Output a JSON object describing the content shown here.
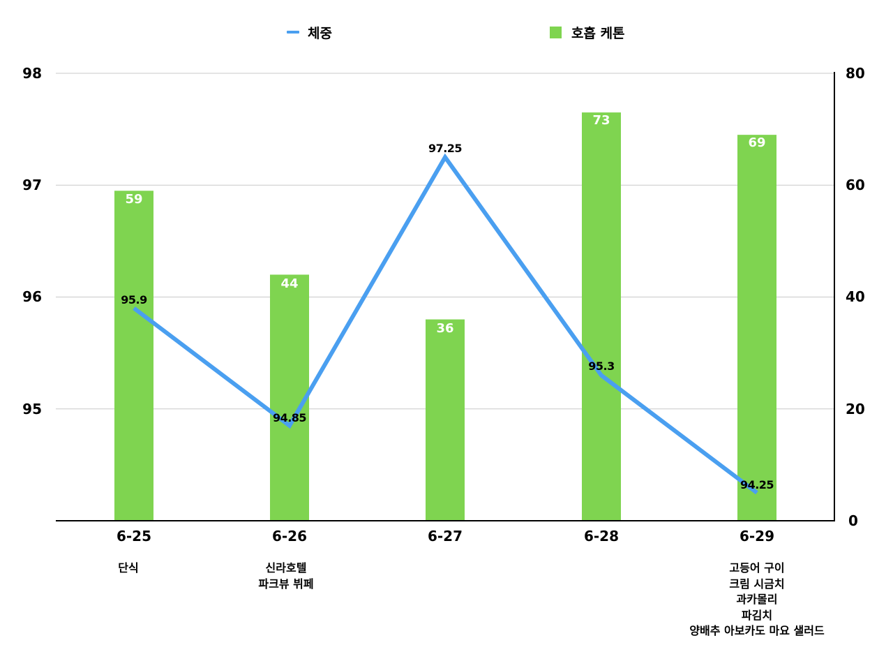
{
  "legend": {
    "line_label": "체중",
    "bar_label": "호흡 케톤"
  },
  "colors": {
    "line": "#4a9ff0",
    "bar": "#7fd450",
    "grid": "#c8c8c8",
    "axis": "#000000"
  },
  "axes": {
    "left_ticks": [
      "98",
      "97",
      "96",
      "95"
    ],
    "right_ticks": [
      "80",
      "60",
      "40",
      "20",
      "0"
    ]
  },
  "categories": [
    {
      "label": "6-25",
      "note": "단식"
    },
    {
      "label": "6-26",
      "note": "신라호텔\n파크뷰 뷔페"
    },
    {
      "label": "6-27",
      "note": ""
    },
    {
      "label": "6-28",
      "note": ""
    },
    {
      "label": "6-29",
      "note": "고등어 구이\n크림 시금치\n과카몰리\n파김치\n양배추 아보카도 마요 샐러드"
    }
  ],
  "bar_value_labels": [
    "59",
    "44",
    "36",
    "73",
    "69"
  ],
  "line_value_labels": [
    "95.9",
    "94.85",
    "97.25",
    "95.3",
    "94.25"
  ],
  "chart_data": {
    "type": "bar+line",
    "title": "",
    "categories": [
      "6-25",
      "6-26",
      "6-27",
      "6-28",
      "6-29"
    ],
    "category_annotations": [
      "단식",
      "신라호텔 파크뷰 뷔페",
      "",
      "",
      "고등어 구이 / 크림 시금치 / 과카몰리 / 파김치 / 양배추 아보카도 마요 샐러드"
    ],
    "series": [
      {
        "name": "체중",
        "type": "line",
        "axis": "left",
        "values": [
          95.9,
          94.85,
          97.25,
          95.3,
          94.25
        ],
        "color": "#4a9ff0"
      },
      {
        "name": "호흡 케톤",
        "type": "bar",
        "axis": "right",
        "values": [
          59,
          44,
          36,
          73,
          69
        ],
        "color": "#7fd450"
      }
    ],
    "y_left": {
      "label": "",
      "ticks": [
        95,
        96,
        97,
        98
      ],
      "range": [
        94,
        98
      ]
    },
    "y_right": {
      "label": "",
      "ticks": [
        0,
        20,
        40,
        60,
        80
      ],
      "range": [
        0,
        80
      ]
    },
    "xlabel": "",
    "grid": true,
    "legend_position": "top"
  }
}
